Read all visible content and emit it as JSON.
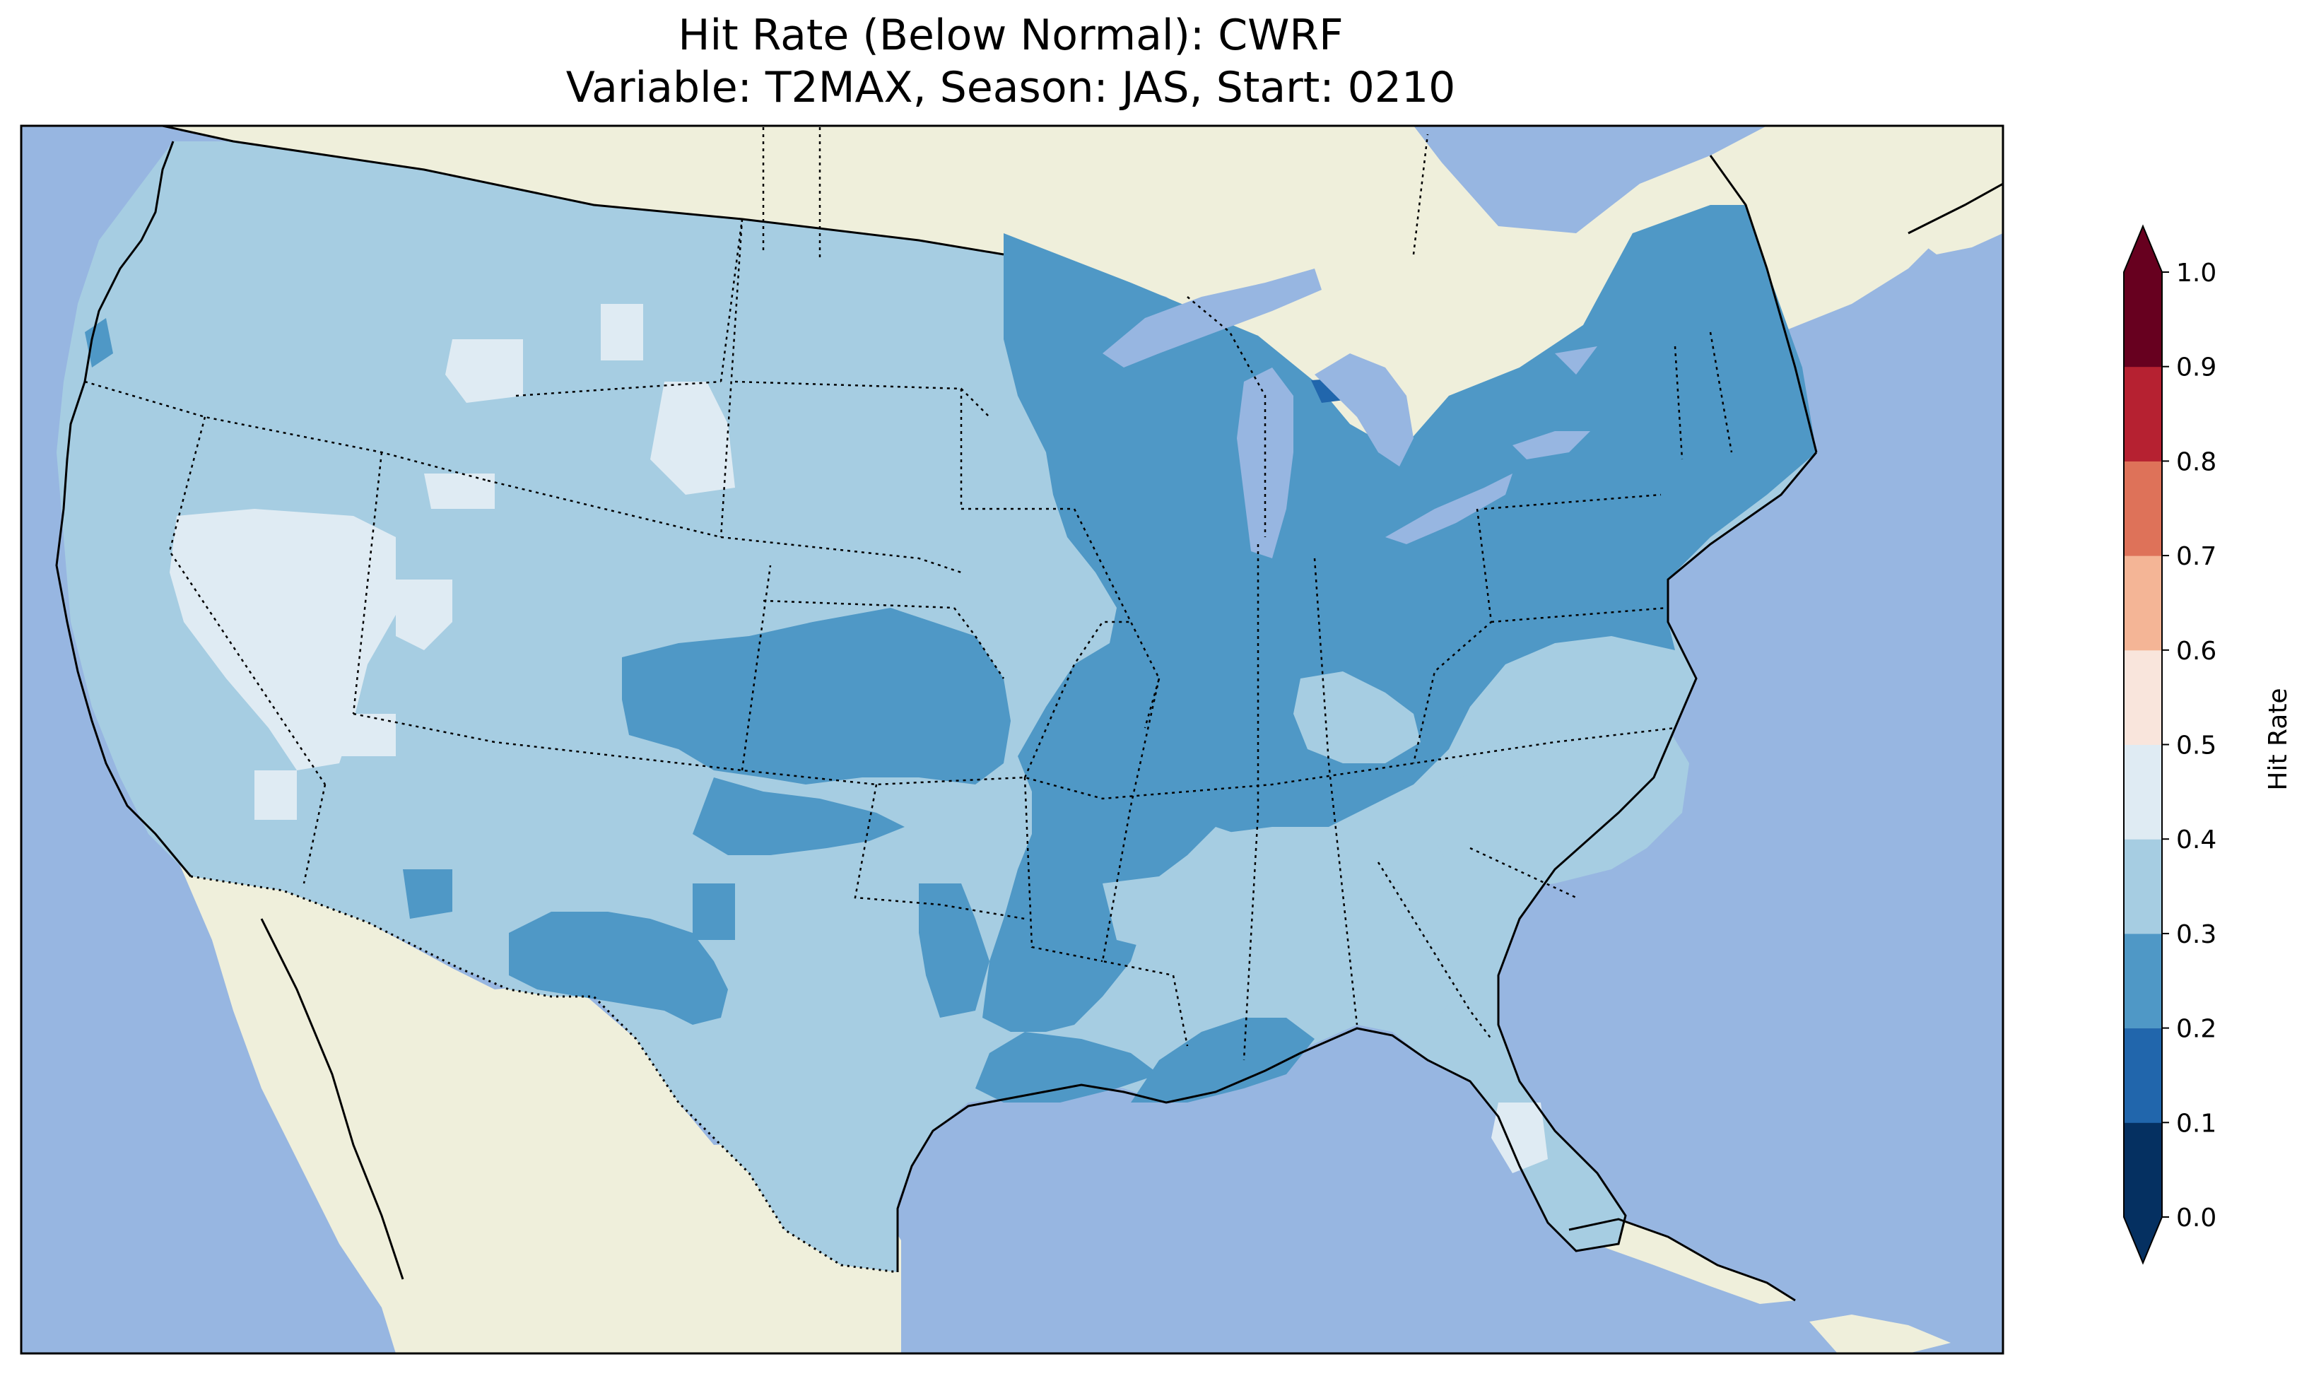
{
  "title": {
    "line1": "Hit Rate (Below Normal): CWRF",
    "line2": "Variable: T2MAX, Season: JAS, Start: 0210"
  },
  "colorbar": {
    "label": "Hit Rate",
    "ticks": [
      "0.0",
      "0.1",
      "0.2",
      "0.3",
      "0.4",
      "0.5",
      "0.6",
      "0.7",
      "0.8",
      "0.9",
      "1.0"
    ],
    "bins": [
      {
        "range": [
          0.0,
          0.1
        ],
        "color": "#053061"
      },
      {
        "range": [
          0.1,
          0.2
        ],
        "color": "#2166ac"
      },
      {
        "range": [
          0.2,
          0.3
        ],
        "color": "#4f98c6"
      },
      {
        "range": [
          0.3,
          0.4
        ],
        "color": "#a6cde2"
      },
      {
        "range": [
          0.4,
          0.5
        ],
        "color": "#dfebf3"
      },
      {
        "range": [
          0.5,
          0.6
        ],
        "color": "#f9e5dc"
      },
      {
        "range": [
          0.6,
          0.7
        ],
        "color": "#f4b596"
      },
      {
        "range": [
          0.7,
          0.8
        ],
        "color": "#de7259"
      },
      {
        "range": [
          0.8,
          0.9
        ],
        "color": "#b62131"
      },
      {
        "range": [
          0.9,
          1.0
        ],
        "color": "#67001f"
      }
    ],
    "extend": "both"
  },
  "map_colors": {
    "ocean": "#97b6e1",
    "land": "#efefdb"
  }
}
